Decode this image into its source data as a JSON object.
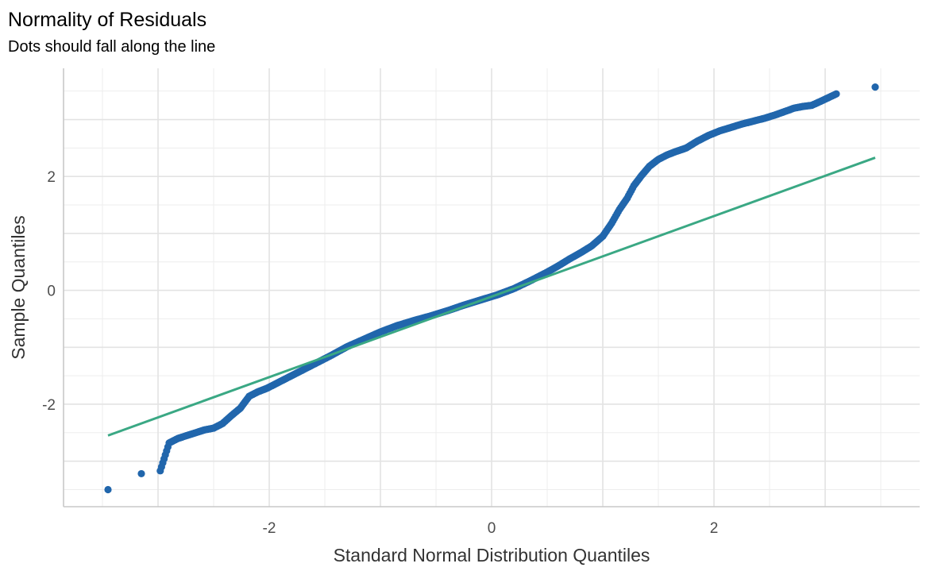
{
  "chart_data": {
    "type": "scatter",
    "title": "Normality of Residuals",
    "subtitle": "Dots should fall along the line",
    "xlabel": "Standard Normal Distribution Quantiles",
    "ylabel": "Sample Quantiles",
    "xlim": [
      -3.85,
      3.85
    ],
    "ylim": [
      -3.8,
      3.9
    ],
    "x_ticks": [
      -2,
      0,
      2
    ],
    "y_ticks": [
      -2,
      0,
      2
    ],
    "x_tick_labels": [
      "-2",
      "0",
      "2"
    ],
    "y_tick_labels": [
      "-2",
      "0",
      "2"
    ],
    "grid": true,
    "legend": "none",
    "point_color": "#2166ac",
    "line_color": "#3aa884",
    "reference_line": {
      "x": [
        -3.45,
        3.45
      ],
      "y": [
        -2.55,
        2.33
      ]
    },
    "points": {
      "x": [
        -3.45,
        -3.15,
        -2.98,
        -2.9,
        -2.82,
        -2.74,
        -2.66,
        -2.58,
        -2.5,
        -2.42,
        -2.34,
        -2.26,
        -2.18,
        -2.1,
        -2.02,
        -1.9,
        -1.75,
        -1.6,
        -1.45,
        -1.3,
        -1.15,
        -1.0,
        -0.85,
        -0.7,
        -0.55,
        -0.4,
        -0.25,
        -0.1,
        0.05,
        0.2,
        0.35,
        0.5,
        0.6,
        0.7,
        0.8,
        0.9,
        1.0,
        1.08,
        1.15,
        1.22,
        1.28,
        1.35,
        1.42,
        1.5,
        1.58,
        1.66,
        1.75,
        1.85,
        1.95,
        2.05,
        2.15,
        2.25,
        2.35,
        2.45,
        2.55,
        2.65,
        2.72,
        2.8,
        2.88,
        2.97,
        3.1,
        3.45
      ],
      "y": [
        -3.5,
        -3.22,
        -3.17,
        -2.68,
        -2.6,
        -2.55,
        -2.5,
        -2.45,
        -2.42,
        -2.34,
        -2.2,
        -2.07,
        -1.86,
        -1.78,
        -1.72,
        -1.6,
        -1.45,
        -1.3,
        -1.15,
        -0.99,
        -0.86,
        -0.73,
        -0.62,
        -0.53,
        -0.45,
        -0.36,
        -0.26,
        -0.17,
        -0.08,
        0.03,
        0.17,
        0.32,
        0.43,
        0.55,
        0.66,
        0.78,
        0.95,
        1.18,
        1.42,
        1.62,
        1.84,
        2.02,
        2.18,
        2.3,
        2.38,
        2.44,
        2.5,
        2.62,
        2.72,
        2.8,
        2.86,
        2.92,
        2.97,
        3.02,
        3.08,
        3.15,
        3.2,
        3.23,
        3.25,
        3.33,
        3.45,
        3.57
      ]
    }
  }
}
